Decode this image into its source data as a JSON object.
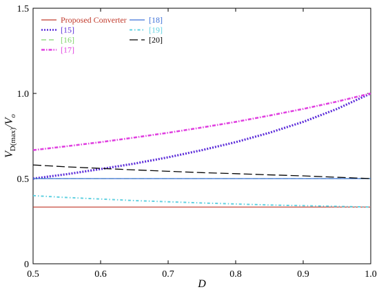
{
  "chart_data": {
    "type": "line",
    "title": "",
    "xlabel": "D",
    "ylabel_main": "V",
    "ylabel_sub": "D(max)",
    "ylabel_tail": "/V",
    "ylabel_tail_sub": "o",
    "xlim": [
      0.5,
      1.0
    ],
    "ylim": [
      0,
      1.5
    ],
    "x_ticks": [
      0.5,
      0.6,
      0.7,
      0.8,
      0.9,
      1.0
    ],
    "x_tick_labels": [
      "0.5",
      "0.6",
      "0.7",
      "0.8",
      "0.9",
      "1.0"
    ],
    "y_ticks": [
      0,
      0.5,
      1.0,
      1.5
    ],
    "y_tick_labels": [
      "0",
      "0.5",
      "1.0",
      "1.5"
    ],
    "grid": false,
    "legend_position": "top-left",
    "x": [
      0.5,
      0.55,
      0.6,
      0.65,
      0.7,
      0.75,
      0.8,
      0.85,
      0.9,
      0.95,
      1.0
    ],
    "series": [
      {
        "name": "Proposed Converter",
        "color": "#c0392b",
        "dash": "solid",
        "values": [
          0.333,
          0.333,
          0.333,
          0.333,
          0.333,
          0.333,
          0.333,
          0.333,
          0.333,
          0.333,
          0.333
        ]
      },
      {
        "name": "[15]",
        "color": "#5b2bd9",
        "dash": "dotted-thick",
        "values": [
          0.5,
          0.526,
          0.556,
          0.588,
          0.625,
          0.667,
          0.714,
          0.769,
          0.833,
          0.909,
          1.0
        ]
      },
      {
        "name": "[16]",
        "color": "#7fd36a",
        "dash": "dashed",
        "values": [
          0.5,
          0.5,
          0.5,
          0.5,
          0.5,
          0.5,
          0.5,
          0.5,
          0.5,
          0.5,
          0.5
        ]
      },
      {
        "name": "[17]",
        "color": "#e040e0",
        "dash": "dashdot",
        "values": [
          0.667,
          0.69,
          0.714,
          0.741,
          0.769,
          0.8,
          0.833,
          0.87,
          0.909,
          0.952,
          1.0
        ]
      },
      {
        "name": "[18]",
        "color": "#3a6fd8",
        "dash": "solid",
        "values": [
          0.5,
          0.5,
          0.5,
          0.5,
          0.5,
          0.5,
          0.5,
          0.5,
          0.5,
          0.5,
          0.5
        ]
      },
      {
        "name": "[19]",
        "color": "#5fd0e0",
        "dash": "dashdot-light",
        "values": [
          0.4,
          0.389,
          0.38,
          0.371,
          0.364,
          0.357,
          0.351,
          0.345,
          0.341,
          0.337,
          0.333
        ]
      },
      {
        "name": "[20]",
        "color": "#000000",
        "dash": "longdash",
        "values": [
          0.58,
          0.569,
          0.56,
          0.551,
          0.543,
          0.535,
          0.529,
          0.522,
          0.516,
          0.508,
          0.5
        ]
      }
    ]
  }
}
